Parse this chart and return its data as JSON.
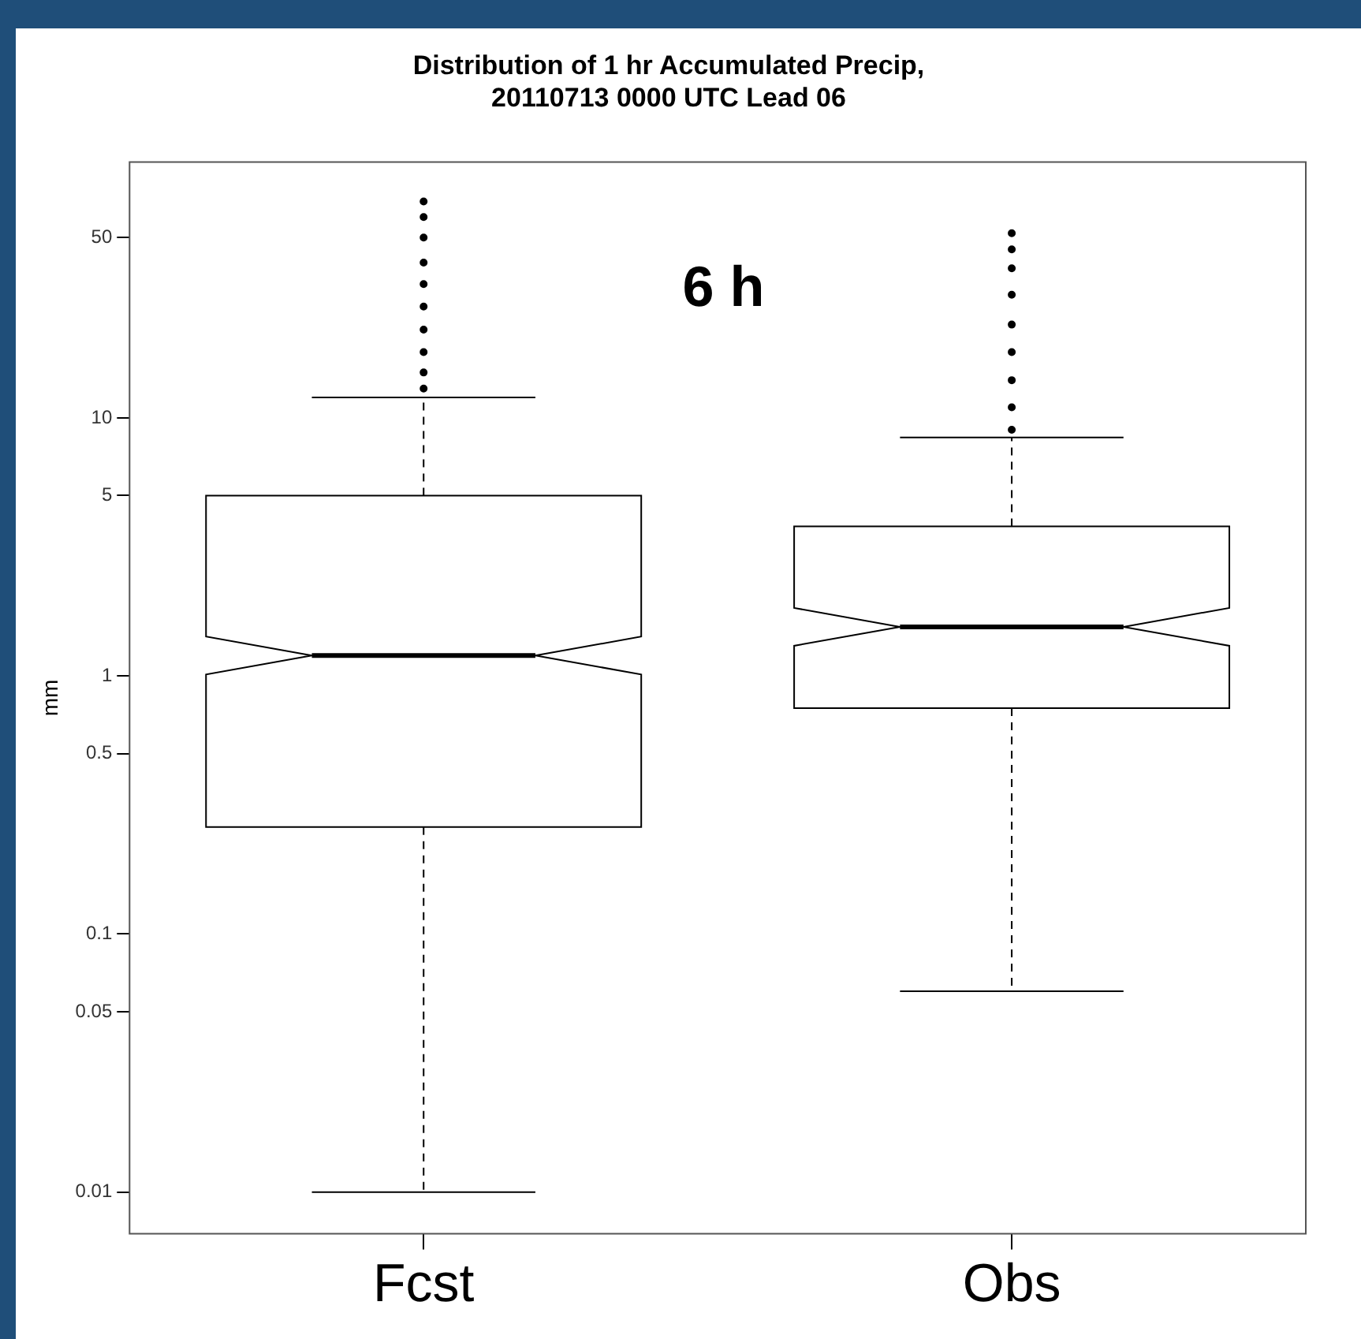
{
  "chart_data": {
    "type": "box",
    "title": "Distribution of 1 hr Accumulated Precip,\n20110713 0000 UTC Lead 06",
    "ylabel": "mm",
    "categories": [
      "Fcst",
      "Obs"
    ],
    "boxes": [
      {
        "low": 0.01,
        "q1": 0.26,
        "median": 1.2,
        "q3": 5,
        "high": 12,
        "outliers": [
          13,
          15,
          18,
          22,
          27,
          33,
          40,
          50,
          60,
          69
        ]
      },
      {
        "low": 0.06,
        "q1": 0.75,
        "median": 1.55,
        "q3": 3.8,
        "high": 8.4,
        "outliers": [
          9,
          11,
          14,
          18,
          23,
          30,
          38,
          45,
          52
        ]
      }
    ],
    "ylim": [
      0.0069,
      98
    ],
    "yticks": [
      0.01,
      0.05,
      0.1,
      0.5,
      1,
      5,
      10,
      50
    ],
    "log": true,
    "annotations": [
      "6 h"
    ]
  }
}
